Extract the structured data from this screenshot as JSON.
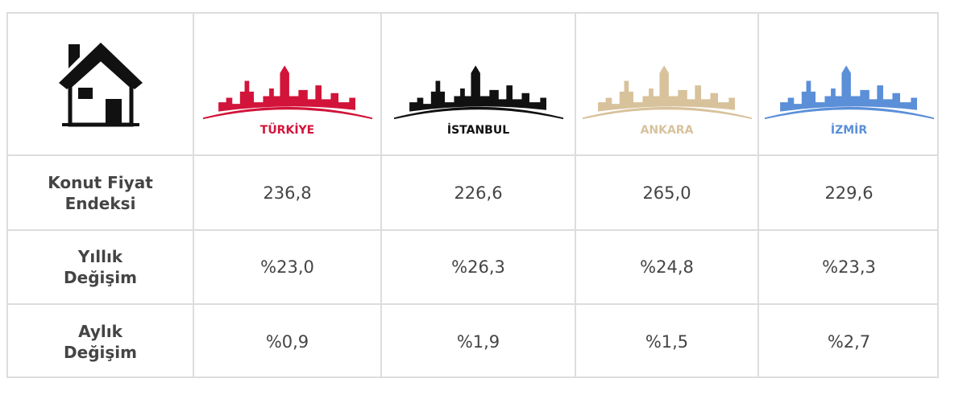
{
  "table": {
    "header": [
      "TÜRKİYE",
      "İSTANBUL",
      "ANKARA",
      "İZMİR"
    ],
    "rows": [
      [
        "Konut Fiyat Endeksi",
        "236,8",
        "226,6",
        "265,0",
        "229,6"
      ],
      [
        "Yıllık Değişim",
        "%23,0",
        "%26,3",
        "%24,8",
        "%23,3"
      ],
      [
        "Aylık Değişim",
        "%0,9",
        "%1,9",
        "%1,5",
        "%2,7"
      ]
    ]
  }
}
